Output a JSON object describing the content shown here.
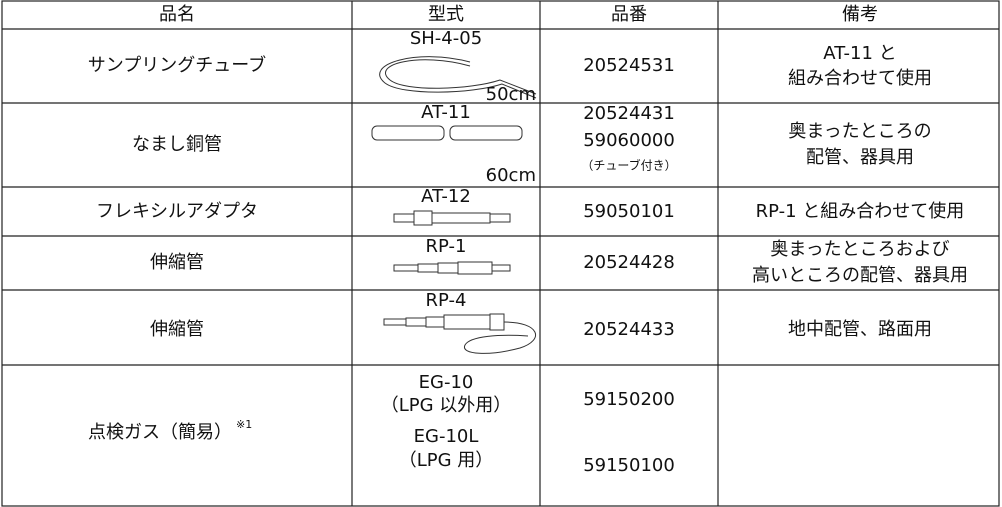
{
  "table": {
    "header": [
      "品名",
      "型式",
      "品番",
      "備考"
    ],
    "rows": [
      {
        "name": "サンプリングチューブ",
        "model": [
          "SH-4-05"
        ],
        "size": "50cm",
        "numbers": [
          "20524531"
        ],
        "remarks": [
          "AT-11 と",
          "組み合わせて使用"
        ]
      },
      {
        "name": "なまし銅管",
        "model": [
          "AT-11"
        ],
        "size": "60cm",
        "numbers": [
          "20524431",
          "59060000",
          "（チューブ付き）"
        ],
        "remarks": [
          "奥まったところの",
          "配管、器具用"
        ]
      },
      {
        "name": "フレキシルアダプタ",
        "model": [
          "AT-12"
        ],
        "numbers": [
          "59050101"
        ],
        "remarks": [
          "RP-1 と組み合わせて使用"
        ]
      },
      {
        "name": "伸縮管",
        "model": [
          "RP-1"
        ],
        "numbers": [
          "20524428"
        ],
        "remarks": [
          "奥まったところおよび",
          "高いところの配管、器具用"
        ]
      },
      {
        "name": "伸縮管",
        "model": [
          "RP-4"
        ],
        "numbers": [
          "20524433"
        ],
        "remarks": [
          "地中配管、路面用"
        ]
      },
      {
        "name": "点検ガス（簡易）",
        "note": "※1",
        "model": [
          "EG-10",
          "（LPG 以外用）",
          "EG-10L",
          "（LPG 用）"
        ],
        "numbers": [
          "59150200",
          "59150100"
        ]
      }
    ]
  }
}
